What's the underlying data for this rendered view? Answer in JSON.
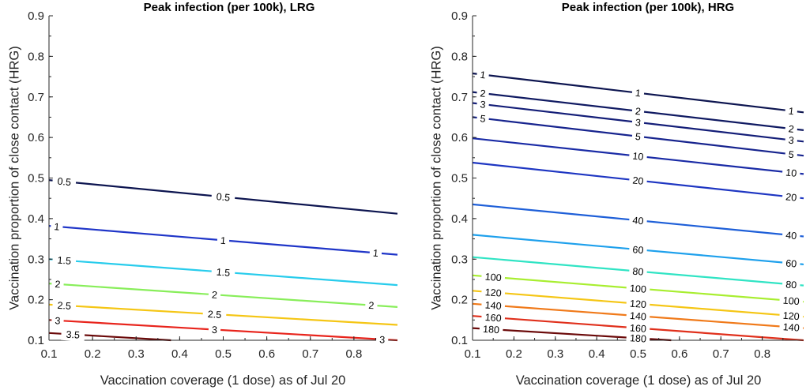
{
  "chart_data": [
    {
      "type": "contour",
      "title": "Peak infection (per 100k), LRG",
      "xlabel": "Vaccination coverage (1 dose) as of Jul 20",
      "ylabel": "Vaccination proportion of close contact (HRG)",
      "xlim": [
        0.1,
        0.9
      ],
      "ylim": [
        0.1,
        0.9
      ],
      "xticks": [
        "0.1",
        "0.2",
        "0.3",
        "0.4",
        "0.5",
        "0.6",
        "0.7",
        "0.8"
      ],
      "yticks": [
        "0.1",
        "0.2",
        "0.3",
        "0.4",
        "0.5",
        "0.6",
        "0.7",
        "0.8",
        "0.9"
      ],
      "levels": [
        {
          "label": "0.5",
          "color": "#0d1550",
          "points": [
            [
              0.1,
              0.495
            ],
            [
              0.9,
              0.412
            ]
          ],
          "label_x": [
            0.135,
            0.5
          ]
        },
        {
          "label": "1",
          "color": "#1f35c8",
          "points": [
            [
              0.1,
              0.382
            ],
            [
              0.9,
              0.311
            ]
          ],
          "label_x": [
            0.118,
            0.5,
            0.85
          ]
        },
        {
          "label": "1.5",
          "color": "#28ccec",
          "points": [
            [
              0.1,
              0.3
            ],
            [
              0.9,
              0.236
            ]
          ],
          "label_x": [
            0.135,
            0.5
          ]
        },
        {
          "label": "2",
          "color": "#88ee5a",
          "points": [
            [
              0.1,
              0.24
            ],
            [
              0.9,
              0.182
            ]
          ],
          "label_x": [
            0.12,
            0.48,
            0.84
          ]
        },
        {
          "label": "2.5",
          "color": "#f5c615",
          "points": [
            [
              0.1,
              0.188
            ],
            [
              0.9,
              0.138
            ]
          ],
          "label_x": [
            0.135,
            0.48
          ]
        },
        {
          "label": "3",
          "color": "#e8241c",
          "points": [
            [
              0.1,
              0.15
            ],
            [
              0.9,
              0.1
            ]
          ],
          "label_x": [
            0.12,
            0.48,
            0.865
          ]
        },
        {
          "label": "3.5",
          "color": "#6b0a0a",
          "points": [
            [
              0.1,
              0.118
            ],
            [
              0.38,
              0.1
            ]
          ],
          "label_x": [
            0.155
          ]
        }
      ]
    },
    {
      "type": "contour",
      "title": "Peak infection (per 100k), HRG",
      "xlabel": "Vaccination coverage (1 dose) as of Jul 20",
      "ylabel": "Vaccination proportion of close contact (HRG)",
      "xlim": [
        0.1,
        0.9
      ],
      "ylim": [
        0.1,
        0.9
      ],
      "xticks": [
        "0.1",
        "0.2",
        "0.3",
        "0.4",
        "0.5",
        "0.6",
        "0.7",
        "0.8"
      ],
      "yticks": [
        "0.1",
        "0.2",
        "0.3",
        "0.4",
        "0.5",
        "0.6",
        "0.7",
        "0.8",
        "0.9"
      ],
      "levels": [
        {
          "label": "1",
          "color": "#0d1550",
          "points": [
            [
              0.1,
              0.758
            ],
            [
              0.9,
              0.662
            ]
          ],
          "label_x": [
            0.125,
            0.5,
            0.87
          ]
        },
        {
          "label": "2",
          "color": "#101a62",
          "points": [
            [
              0.1,
              0.712
            ],
            [
              0.9,
              0.618
            ]
          ],
          "label_x": [
            0.125,
            0.5,
            0.87
          ]
        },
        {
          "label": "3",
          "color": "#141e78",
          "points": [
            [
              0.1,
              0.685
            ],
            [
              0.9,
              0.59
            ]
          ],
          "label_x": [
            0.125,
            0.5,
            0.87
          ]
        },
        {
          "label": "5",
          "color": "#17248e",
          "points": [
            [
              0.1,
              0.65
            ],
            [
              0.9,
              0.555
            ]
          ],
          "label_x": [
            0.125,
            0.5,
            0.87
          ]
        },
        {
          "label": "10",
          "color": "#1a2ba6",
          "points": [
            [
              0.1,
              0.598
            ],
            [
              0.9,
              0.51
            ]
          ],
          "label_x": [
            0.5,
            0.87
          ]
        },
        {
          "label": "20",
          "color": "#1e36c2",
          "points": [
            [
              0.1,
              0.538
            ],
            [
              0.9,
              0.45
            ]
          ],
          "label_x": [
            0.5,
            0.87
          ]
        },
        {
          "label": "40",
          "color": "#1e5fd8",
          "points": [
            [
              0.1,
              0.435
            ],
            [
              0.9,
              0.356
            ]
          ],
          "label_x": [
            0.5,
            0.87
          ]
        },
        {
          "label": "60",
          "color": "#1ea0ec",
          "points": [
            [
              0.1,
              0.36
            ],
            [
              0.9,
              0.287
            ]
          ],
          "label_x": [
            0.5,
            0.87
          ]
        },
        {
          "label": "80",
          "color": "#30e4c4",
          "points": [
            [
              0.1,
              0.305
            ],
            [
              0.9,
              0.235
            ]
          ],
          "label_x": [
            0.5,
            0.87
          ]
        },
        {
          "label": "100",
          "color": "#a8ee30",
          "points": [
            [
              0.1,
              0.26
            ],
            [
              0.9,
              0.195
            ]
          ],
          "label_x": [
            0.15,
            0.5,
            0.87
          ]
        },
        {
          "label": "120",
          "color": "#f5c615",
          "points": [
            [
              0.1,
              0.222
            ],
            [
              0.9,
              0.158
            ]
          ],
          "label_x": [
            0.15,
            0.5,
            0.87
          ]
        },
        {
          "label": "140",
          "color": "#f07a1a",
          "points": [
            [
              0.1,
              0.19
            ],
            [
              0.9,
              0.13
            ]
          ],
          "label_x": [
            0.15,
            0.5,
            0.87
          ]
        },
        {
          "label": "160",
          "color": "#e0301c",
          "points": [
            [
              0.1,
              0.16
            ],
            [
              0.9,
              0.1
            ]
          ],
          "label_x": [
            0.15,
            0.5
          ]
        },
        {
          "label": "180",
          "color": "#6b0a0a",
          "points": [
            [
              0.1,
              0.13
            ],
            [
              0.58,
              0.1
            ]
          ],
          "label_x": [
            0.145,
            0.5
          ]
        }
      ]
    }
  ]
}
